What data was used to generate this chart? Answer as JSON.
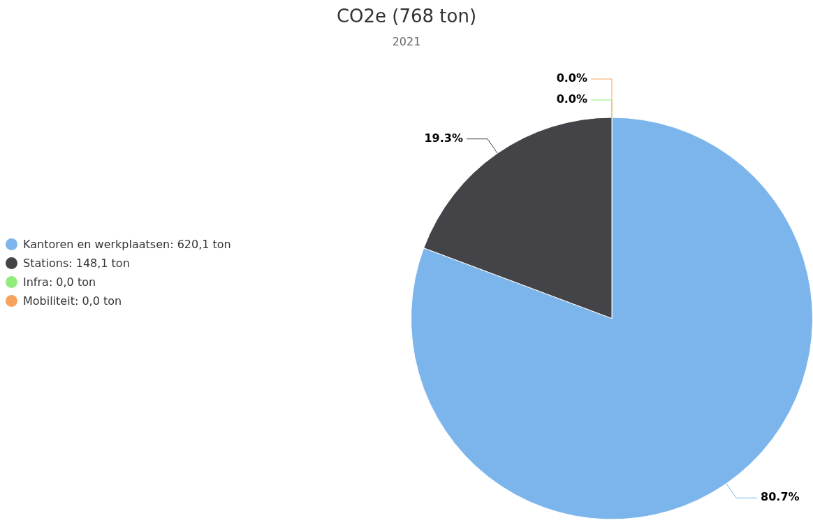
{
  "chart_data": {
    "type": "pie",
    "title": "CO2e (768 ton)",
    "subtitle": "2021",
    "categories": [
      "Kantoren en werkplaatsen: 620,1 ton",
      "Stations: 148,1 ton",
      "Infra: 0,0 ton",
      "Mobiliteit: 0,0 ton"
    ],
    "values": [
      80.7,
      19.3,
      0,
      0
    ],
    "colors": [
      "#7cb5ec",
      "#434348",
      "#90ed7d",
      "#f7a35c"
    ],
    "value_labels": [
      "80.7%",
      "19.3%",
      "0.0%",
      "0.0%"
    ],
    "legend": "left"
  }
}
